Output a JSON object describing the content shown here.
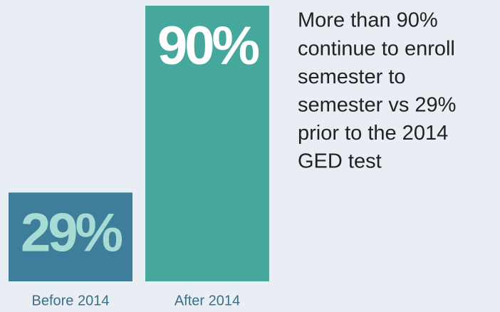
{
  "chart_data": {
    "type": "bar",
    "categories": [
      "Before 2014",
      "After 2014"
    ],
    "values": [
      29,
      90
    ],
    "value_labels": [
      "29%",
      "90%"
    ],
    "colors": [
      "#3e7e9b",
      "#46a89c"
    ],
    "annotation": [
      "More than 90%",
      "continue to enroll",
      "semester to",
      "semester vs 29%",
      "prior to the 2014",
      "GED test"
    ]
  }
}
